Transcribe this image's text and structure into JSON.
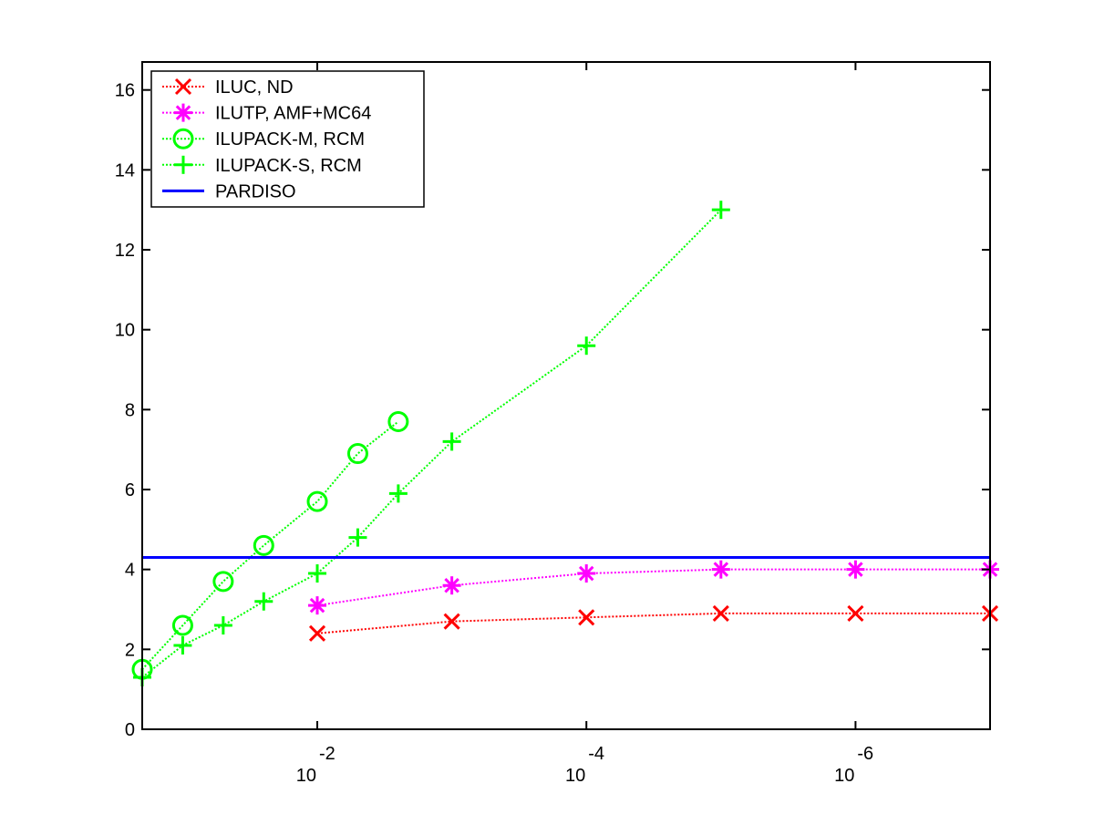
{
  "chart_data": {
    "type": "line",
    "title": "",
    "xlabel": "",
    "ylabel": "",
    "x_scale": "log",
    "x_direction": "reversed",
    "xlim": [
      0.2,
      1e-07
    ],
    "ylim": [
      0,
      16.7
    ],
    "x_ticks": [
      {
        "value": 0.01,
        "base": "10",
        "exponent": "-2"
      },
      {
        "value": 0.0001,
        "base": "10",
        "exponent": "-4"
      },
      {
        "value": 1e-06,
        "base": "10",
        "exponent": "-6"
      }
    ],
    "y_ticks": [
      0,
      2,
      4,
      6,
      8,
      10,
      12,
      14,
      16
    ],
    "grid": false,
    "legend_position": "top-left",
    "series": [
      {
        "name": "ILUC,  ND",
        "color": "#ff0000",
        "marker": "x",
        "line": "dotted",
        "x": [
          0.01,
          0.001,
          0.0001,
          1e-05,
          1e-06,
          1e-07
        ],
        "y": [
          2.4,
          2.7,
          2.8,
          2.9,
          2.9,
          2.9
        ]
      },
      {
        "name": "ILUTP, AMF+MC64",
        "color": "#ff00ff",
        "marker": "asterisk",
        "line": "dotted",
        "x": [
          0.01,
          0.001,
          0.0001,
          1e-05,
          1e-06,
          1e-07
        ],
        "y": [
          3.1,
          3.6,
          3.9,
          4.0,
          4.0,
          4.0
        ]
      },
      {
        "name": "ILUPACK-M, RCM",
        "color": "#00ff00",
        "marker": "circle",
        "line": "dotted",
        "x": [
          0.2,
          0.1,
          0.05,
          0.025,
          0.01,
          0.005,
          0.0025
        ],
        "y": [
          1.5,
          2.6,
          3.7,
          4.6,
          5.7,
          6.9,
          7.7
        ]
      },
      {
        "name": "ILUPACK-S, RCM",
        "color": "#00ff00",
        "marker": "plus",
        "line": "dotted",
        "x": [
          0.2,
          0.1,
          0.05,
          0.025,
          0.01,
          0.005,
          0.0025,
          0.001,
          0.0001,
          1e-05
        ],
        "y": [
          1.3,
          2.1,
          2.6,
          3.2,
          3.9,
          4.8,
          5.9,
          7.2,
          9.6,
          13.0
        ]
      },
      {
        "name": "PARDISO",
        "color": "#0000ff",
        "marker": "none",
        "line": "solid",
        "x": [
          0.2,
          1e-07
        ],
        "y": [
          4.3,
          4.3
        ]
      }
    ]
  }
}
